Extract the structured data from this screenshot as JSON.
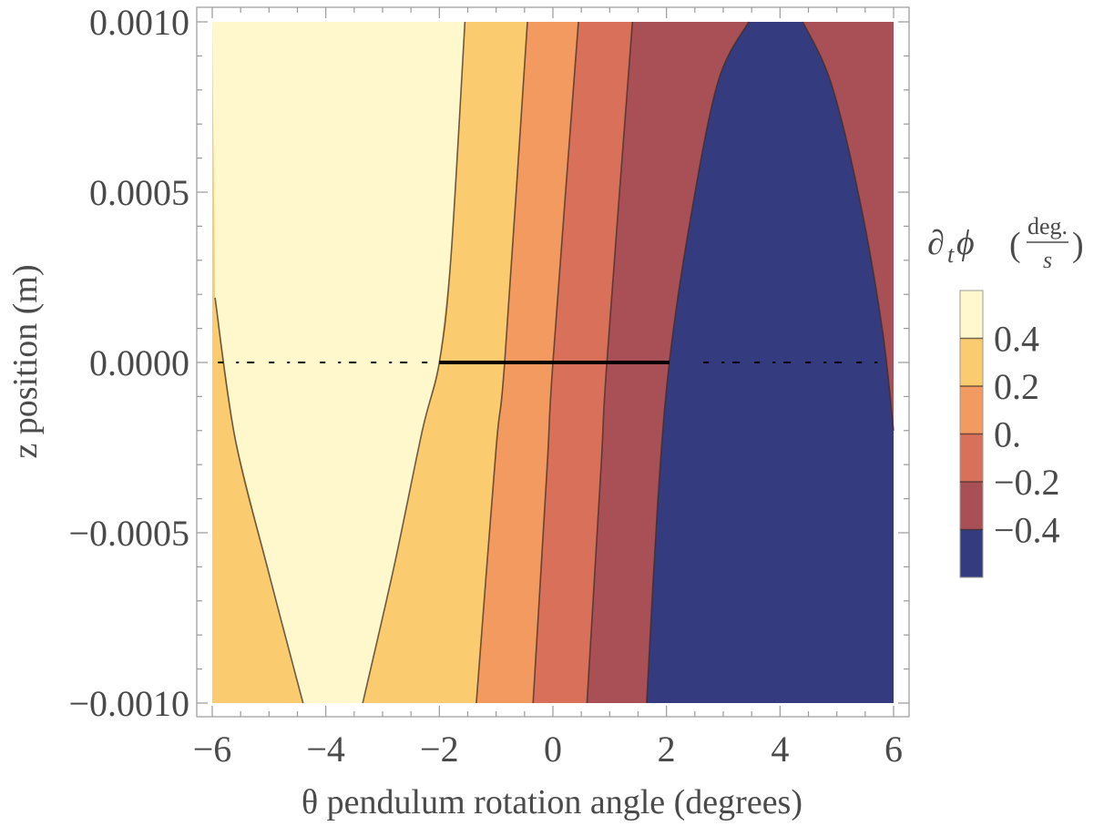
{
  "chart_data": {
    "type": "contour",
    "xlabel": "θ pendulum rotation angle (degrees)",
    "ylabel": "z position (m)",
    "xlim": [
      -6,
      6
    ],
    "ylim": [
      -0.001,
      0.001
    ],
    "xticks": [
      -6,
      -4,
      -2,
      0,
      2,
      4,
      6
    ],
    "xtick_labels": [
      "−6",
      "−4",
      "−2",
      "0",
      "2",
      "4",
      "6"
    ],
    "yticks": [
      -0.001,
      -0.0005,
      0.0,
      0.0005,
      0.001
    ],
    "ytick_labels": [
      "−0.0010",
      "−0.0005",
      "0.0000",
      "0.0005",
      "0.0010"
    ],
    "legend": {
      "title_main": "∂",
      "title_sub": "t",
      "title_var": "ϕ",
      "unit_num": "deg.",
      "unit_den": "s",
      "paren_open": "(",
      "paren_close": ")",
      "placement": "right",
      "labels": [
        "0.4",
        "0.2",
        "0.",
        "−0.2",
        "−0.4"
      ],
      "label_values": [
        0.4,
        0.2,
        0.0,
        -0.2,
        -0.4
      ],
      "bands": [
        {
          "from": 0.4,
          "to": 0.6,
          "color": "#fff8cc"
        },
        {
          "from": 0.2,
          "to": 0.4,
          "color": "#fbcb70"
        },
        {
          "from": 0.0,
          "to": 0.2,
          "color": "#f29a5f"
        },
        {
          "from": -0.2,
          "to": 0.0,
          "color": "#d8705a"
        },
        {
          "from": -0.4,
          "to": -0.2,
          "color": "#a94f56"
        },
        {
          "from": -0.6,
          "to": -0.4,
          "color": "#343b7e"
        }
      ]
    },
    "contour_levels": [
      0.4,
      0.2,
      0.0,
      -0.2,
      -0.4
    ],
    "contour_curves": [
      {
        "level": 0.4,
        "points": [
          [
            -5.95,
            0.00019
          ],
          [
            -5.6,
            -0.00022
          ],
          [
            -5.0,
            -0.00062
          ],
          [
            -4.4,
            -0.001
          ]
        ]
      },
      {
        "level": 0.4,
        "points": [
          [
            -3.35,
            -0.001
          ],
          [
            -2.8,
            -0.0006
          ],
          [
            -2.3,
            -0.0002
          ],
          [
            -2.0,
            0.0
          ],
          [
            -1.8,
            0.0003
          ],
          [
            -1.55,
            0.001
          ]
        ]
      },
      {
        "level": 0.2,
        "points": [
          [
            -1.35,
            -0.001
          ],
          [
            -1.0,
            -0.00025
          ],
          [
            -0.85,
            0.0
          ],
          [
            -0.45,
            0.001
          ]
        ]
      },
      {
        "level": 0.0,
        "points": [
          [
            -0.35,
            -0.001
          ],
          [
            -0.1,
            -0.0003
          ],
          [
            0.0,
            0.0
          ],
          [
            0.45,
            0.001
          ]
        ]
      },
      {
        "level": -0.2,
        "points": [
          [
            0.6,
            -0.001
          ],
          [
            0.85,
            -0.0003
          ],
          [
            0.95,
            0.0
          ],
          [
            1.4,
            0.001
          ]
        ]
      },
      {
        "level": -0.4,
        "points": [
          [
            1.65,
            -0.001
          ],
          [
            1.85,
            -0.0004
          ],
          [
            2.05,
            0.0
          ],
          [
            2.4,
            0.0004
          ],
          [
            2.9,
            0.00082
          ],
          [
            3.45,
            0.001
          ]
        ]
      },
      {
        "level": -0.4,
        "points": [
          [
            4.4,
            0.001
          ],
          [
            4.9,
            0.00082
          ],
          [
            5.4,
            0.00048
          ],
          [
            5.8,
            0.0001
          ],
          [
            6.0,
            -0.0002
          ]
        ]
      }
    ],
    "solid_segment": {
      "z": 0.0,
      "x_from": -2.0,
      "x_to": 2.05
    },
    "dashed_segments": [
      {
        "z": 0.0,
        "x_from": -5.9,
        "x_to": -2.0
      },
      {
        "z": 0.0,
        "x_from": 2.65,
        "x_to": 5.85
      }
    ]
  }
}
